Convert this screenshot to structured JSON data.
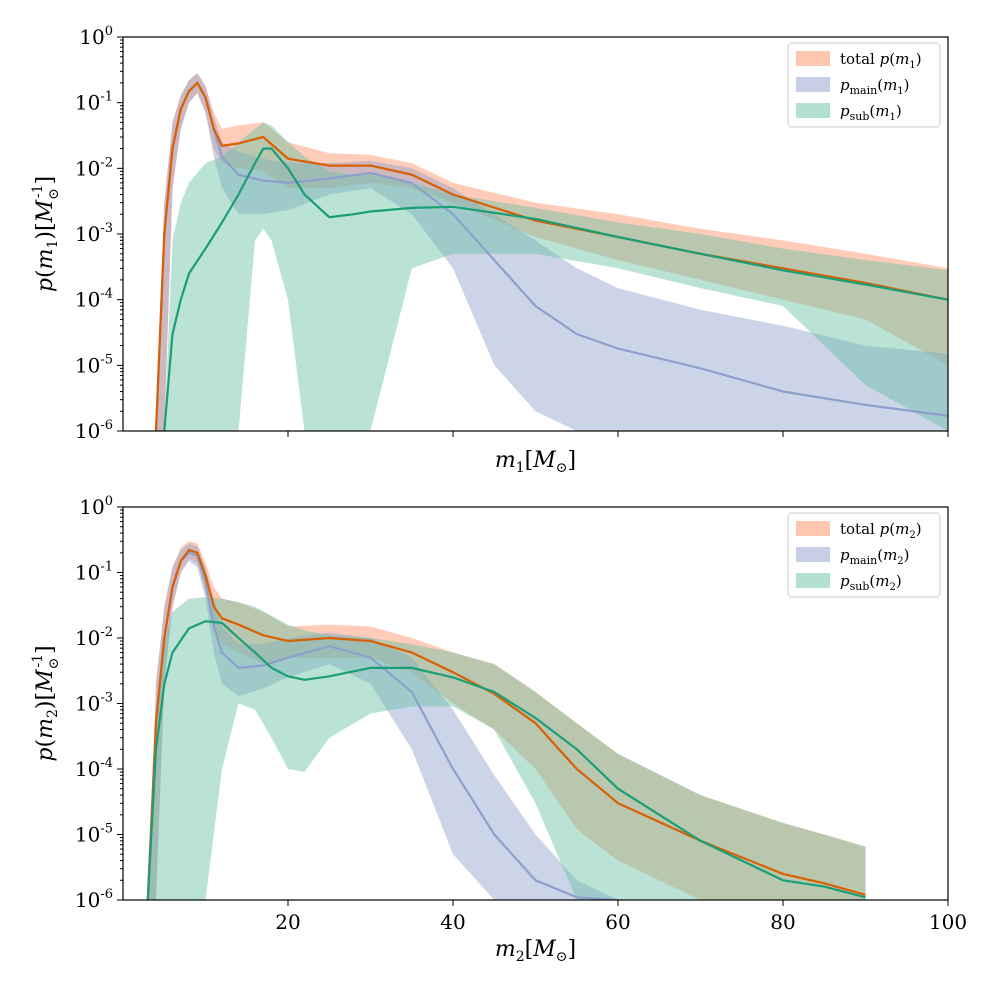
{
  "colors": {
    "total": "#fc8d62",
    "main": "#8da0cb",
    "sub": "#66c2a5",
    "total_line": "#d95f02",
    "main_line": "#8da0cb",
    "sub_line": "#1b9e77"
  },
  "chart_data": [
    {
      "type": "area",
      "xlabel": "m_1[M_⊙]",
      "ylabel": "p(m_1)[M_⊙^{-1}]",
      "xlim": [
        0,
        100
      ],
      "ylim": [
        1e-06,
        1
      ],
      "yscale": "log",
      "legend_position": "top-right",
      "legend": [
        "total p(m_1)",
        "p_main(m_1)",
        "p_sub(m_1)"
      ],
      "yticks": [
        "10^0",
        "10^-1",
        "10^-2",
        "10^-3",
        "10^-4",
        "10^-5",
        "10^-6"
      ],
      "xticks_labels_shown": false,
      "series": [
        {
          "name": "total p(m_1)",
          "x": [
            4,
            5,
            6,
            7,
            8,
            9,
            10,
            11,
            12,
            14,
            17,
            20,
            25,
            30,
            35,
            40,
            50,
            60,
            70,
            80,
            90,
            100
          ],
          "median": [
            1e-06,
            0.001,
            0.02,
            0.08,
            0.15,
            0.2,
            0.12,
            0.04,
            0.022,
            0.024,
            0.03,
            0.014,
            0.011,
            0.011,
            0.008,
            0.004,
            0.0016,
            0.0009,
            0.0005,
            0.0003,
            0.00018,
            0.0001
          ],
          "lower": [
            1e-06,
            1e-06,
            0.005,
            0.04,
            0.1,
            0.14,
            0.07,
            0.02,
            0.012,
            0.01,
            0.009,
            0.005,
            0.005,
            0.006,
            0.005,
            0.003,
            0.0009,
            0.0004,
            0.0002,
            0.0001,
            5e-05,
            1e-05
          ],
          "upper": [
            1e-06,
            0.003,
            0.05,
            0.13,
            0.22,
            0.28,
            0.18,
            0.07,
            0.04,
            0.045,
            0.05,
            0.025,
            0.017,
            0.016,
            0.012,
            0.006,
            0.003,
            0.002,
            0.0012,
            0.0008,
            0.0005,
            0.0003
          ]
        },
        {
          "name": "p_main(m_1)",
          "x": [
            4,
            5,
            6,
            7,
            8,
            9,
            10,
            11,
            12,
            14,
            17,
            20,
            25,
            30,
            35,
            40,
            45,
            50,
            55,
            60,
            70,
            80,
            90,
            100
          ],
          "median": [
            1e-06,
            0.001,
            0.02,
            0.08,
            0.15,
            0.2,
            0.12,
            0.04,
            0.015,
            0.008,
            0.0065,
            0.006,
            0.007,
            0.0085,
            0.006,
            0.002,
            0.0004,
            8e-05,
            3e-05,
            1.8e-05,
            9e-06,
            4e-06,
            2.5e-06,
            1.7e-06
          ],
          "lower": [
            1e-06,
            1e-06,
            0.005,
            0.04,
            0.1,
            0.14,
            0.07,
            0.015,
            0.005,
            0.002,
            0.002,
            0.0023,
            0.004,
            0.005,
            0.002,
            0.0003,
            1e-05,
            2e-06,
            1e-06,
            1e-06,
            1e-06,
            1e-06,
            1e-06,
            1e-06
          ],
          "upper": [
            1e-06,
            0.003,
            0.05,
            0.13,
            0.22,
            0.28,
            0.18,
            0.06,
            0.025,
            0.018,
            0.014,
            0.012,
            0.012,
            0.013,
            0.01,
            0.005,
            0.002,
            0.0008,
            0.0003,
            0.00015,
            7e-05,
            4e-05,
            2e-05,
            1.5e-05
          ]
        },
        {
          "name": "p_sub(m_1)",
          "x": [
            5,
            6,
            7,
            8,
            10,
            12,
            14,
            16,
            17,
            18,
            20,
            22,
            25,
            28,
            30,
            35,
            40,
            50,
            60,
            70,
            80,
            90,
            100
          ],
          "median": [
            1e-06,
            3e-05,
            0.0001,
            0.00025,
            0.0006,
            0.0015,
            0.004,
            0.012,
            0.02,
            0.02,
            0.01,
            0.004,
            0.0018,
            0.002,
            0.0022,
            0.0025,
            0.0026,
            0.0017,
            0.0009,
            0.0005,
            0.00028,
            0.00017,
            0.0001
          ],
          "lower": [
            1e-06,
            1e-06,
            1e-06,
            1e-06,
            1e-06,
            1e-06,
            1e-06,
            0.0008,
            0.0012,
            0.0008,
            0.0001,
            1e-06,
            1e-06,
            1e-06,
            1e-06,
            0.0003,
            0.0005,
            0.0005,
            0.0003,
            0.00015,
            8e-05,
            5e-06,
            1e-06
          ],
          "upper": [
            1e-06,
            0.0008,
            0.003,
            0.006,
            0.012,
            0.015,
            0.025,
            0.04,
            0.05,
            0.045,
            0.025,
            0.015,
            0.009,
            0.008,
            0.008,
            0.006,
            0.004,
            0.0025,
            0.0015,
            0.001,
            0.0006,
            0.0004,
            0.00028
          ]
        }
      ]
    },
    {
      "type": "area",
      "xlabel": "m_2[M_⊙]",
      "ylabel": "p(m_2)[M_⊙^{-1}]",
      "xlim": [
        0,
        100
      ],
      "ylim": [
        1e-06,
        1
      ],
      "yscale": "log",
      "legend_position": "top-right",
      "legend": [
        "total p(m_2)",
        "p_main(m_2)",
        "p_sub(m_2)"
      ],
      "yticks": [
        "10^0",
        "10^-1",
        "10^-2",
        "10^-3",
        "10^-4",
        "10^-5",
        "10^-6"
      ],
      "xticks": [
        "20",
        "40",
        "60",
        "80",
        "100"
      ],
      "series": [
        {
          "name": "total p(m_2)",
          "x": [
            3,
            4,
            5,
            6,
            7,
            8,
            9,
            10,
            11,
            12,
            14,
            17,
            20,
            25,
            30,
            35,
            40,
            45,
            50,
            55,
            60,
            70,
            80,
            85,
            90
          ],
          "median": [
            1e-06,
            0.0005,
            0.01,
            0.06,
            0.15,
            0.22,
            0.2,
            0.09,
            0.03,
            0.02,
            0.016,
            0.011,
            0.009,
            0.01,
            0.009,
            0.006,
            0.003,
            0.0014,
            0.0005,
            0.0001,
            3e-05,
            8e-06,
            2.5e-06,
            1.8e-06,
            1.2e-06
          ],
          "lower": [
            1e-06,
            1e-06,
            0.002,
            0.03,
            0.1,
            0.16,
            0.14,
            0.05,
            0.014,
            0.008,
            0.006,
            0.004,
            0.005,
            0.005,
            0.005,
            0.003,
            0.001,
            0.0004,
            0.0001,
            1.2e-05,
            4e-06,
            1e-06,
            1e-06,
            1e-06,
            1e-06
          ],
          "upper": [
            1e-06,
            0.002,
            0.03,
            0.12,
            0.24,
            0.3,
            0.28,
            0.14,
            0.06,
            0.04,
            0.035,
            0.025,
            0.015,
            0.016,
            0.015,
            0.01,
            0.006,
            0.004,
            0.0015,
            0.0005,
            0.00017,
            4e-05,
            1.5e-05,
            1e-05,
            6.5e-06
          ]
        },
        {
          "name": "p_main(m_2)",
          "x": [
            3,
            4,
            5,
            6,
            7,
            8,
            9,
            10,
            11,
            12,
            14,
            17,
            20,
            25,
            30,
            35,
            40,
            45,
            50,
            55,
            60
          ],
          "median": [
            1e-06,
            0.0005,
            0.01,
            0.06,
            0.15,
            0.2,
            0.18,
            0.07,
            0.015,
            0.006,
            0.0035,
            0.0038,
            0.005,
            0.0075,
            0.005,
            0.0015,
            0.0001,
            1e-05,
            2e-06,
            1.1e-06,
            1e-06
          ],
          "lower": [
            1e-06,
            1e-06,
            0.002,
            0.03,
            0.1,
            0.15,
            0.12,
            0.04,
            0.006,
            0.002,
            0.0013,
            0.0017,
            0.0025,
            0.004,
            0.002,
            0.0002,
            5e-06,
            1e-06,
            1e-06,
            1e-06,
            1e-06
          ],
          "upper": [
            1e-06,
            0.002,
            0.03,
            0.12,
            0.22,
            0.28,
            0.25,
            0.12,
            0.04,
            0.015,
            0.008,
            0.008,
            0.01,
            0.012,
            0.01,
            0.005,
            0.0008,
            8e-05,
            1e-05,
            2e-06,
            1e-06
          ]
        },
        {
          "name": "p_sub(m_2)",
          "x": [
            3,
            4,
            5,
            6,
            8,
            10,
            12,
            14,
            16,
            18,
            20,
            22,
            25,
            30,
            35,
            40,
            45,
            50,
            55,
            60,
            70,
            80,
            85,
            90
          ],
          "median": [
            1e-06,
            0.0002,
            0.002,
            0.006,
            0.014,
            0.018,
            0.017,
            0.01,
            0.006,
            0.0035,
            0.0026,
            0.0023,
            0.0026,
            0.0035,
            0.0035,
            0.0025,
            0.0015,
            0.0006,
            0.0002,
            5e-05,
            8e-06,
            2e-06,
            1.6e-06,
            1.1e-06
          ],
          "lower": [
            1e-06,
            1e-06,
            1e-06,
            1e-06,
            1e-06,
            1e-06,
            0.0001,
            0.001,
            0.0008,
            0.0003,
            0.0001,
            9e-05,
            0.0003,
            0.0007,
            0.0009,
            0.0009,
            0.0004,
            3e-05,
            1e-06,
            1e-06,
            1e-06,
            1e-06,
            1e-06,
            1e-06
          ],
          "upper": [
            1e-06,
            0.0006,
            0.008,
            0.025,
            0.04,
            0.042,
            0.04,
            0.035,
            0.03,
            0.022,
            0.016,
            0.013,
            0.011,
            0.01,
            0.008,
            0.006,
            0.004,
            0.0015,
            0.0005,
            0.00017,
            4e-05,
            1.5e-05,
            1e-05,
            6.5e-06
          ]
        }
      ]
    }
  ]
}
